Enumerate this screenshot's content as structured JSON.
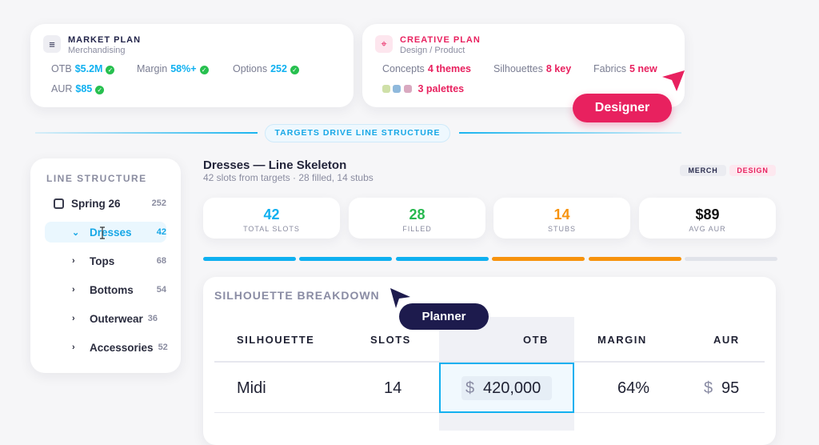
{
  "market": {
    "title": "MARKET PLAN",
    "subtitle": "Merchandising",
    "metrics": [
      {
        "label": "OTB",
        "value": "$5.2M"
      },
      {
        "label": "Margin",
        "value": "58%+"
      },
      {
        "label": "Options",
        "value": "252"
      },
      {
        "label": "AUR",
        "value": "$85"
      }
    ]
  },
  "creative": {
    "title": "CREATIVE PLAN",
    "subtitle": "Design / Product",
    "metrics": [
      {
        "label": "Concepts",
        "value": "4 themes"
      },
      {
        "label": "Silhouettes",
        "value": "8 key"
      },
      {
        "label": "Fabrics",
        "value": "5 new"
      }
    ],
    "palettes": "3 palettes",
    "swatches": [
      "#cfe0a8",
      "#8fb9dc",
      "#d9a9c0"
    ]
  },
  "divider": {
    "label": "TARGETS DRIVE LINE STRUCTURE"
  },
  "cursors": {
    "designer": "Designer",
    "planner": "Planner"
  },
  "sidebar": {
    "title": "LINE STRUCTURE",
    "root": {
      "label": "Spring 26",
      "count": "252"
    },
    "items": [
      {
        "label": "Dresses",
        "count": "42",
        "active": true
      },
      {
        "label": "Tops",
        "count": "68"
      },
      {
        "label": "Bottoms",
        "count": "54"
      },
      {
        "label": "Outerwear",
        "count": "36"
      },
      {
        "label": "Accessories",
        "count": "52"
      }
    ]
  },
  "main": {
    "title": "Dresses — Line Skeleton",
    "subtitle": "42 slots from targets · 28 filled, 14 stubs",
    "badges": [
      "MERCH",
      "DESIGN"
    ],
    "stats": [
      {
        "value": "42",
        "label": "TOTAL SLOTS",
        "color": "#0fb0f0"
      },
      {
        "value": "28",
        "label": "FILLED",
        "color": "#27b84f"
      },
      {
        "value": "14",
        "label": "STUBS",
        "color": "#f7930e"
      },
      {
        "value": "$89",
        "label": "AVG AUR",
        "color": "#111"
      }
    ],
    "progress": {
      "segments": [
        "filled",
        "filled",
        "filled",
        "stub",
        "stub",
        "empty"
      ],
      "colors": {
        "filled": "#0fb0f0",
        "stub": "#f7930e",
        "empty": "#e1e3ea"
      }
    }
  },
  "table": {
    "title": "SILHOUETTE BREAKDOWN",
    "columns": [
      "SILHOUETTE",
      "SLOTS",
      "OTB",
      "MARGIN",
      "AUR"
    ],
    "rows": [
      {
        "silhouette": "Midi",
        "slots": "14",
        "otb_currency": "$",
        "otb": "420,000",
        "margin": "64%",
        "aur_currency": "$",
        "aur": "95"
      }
    ]
  }
}
